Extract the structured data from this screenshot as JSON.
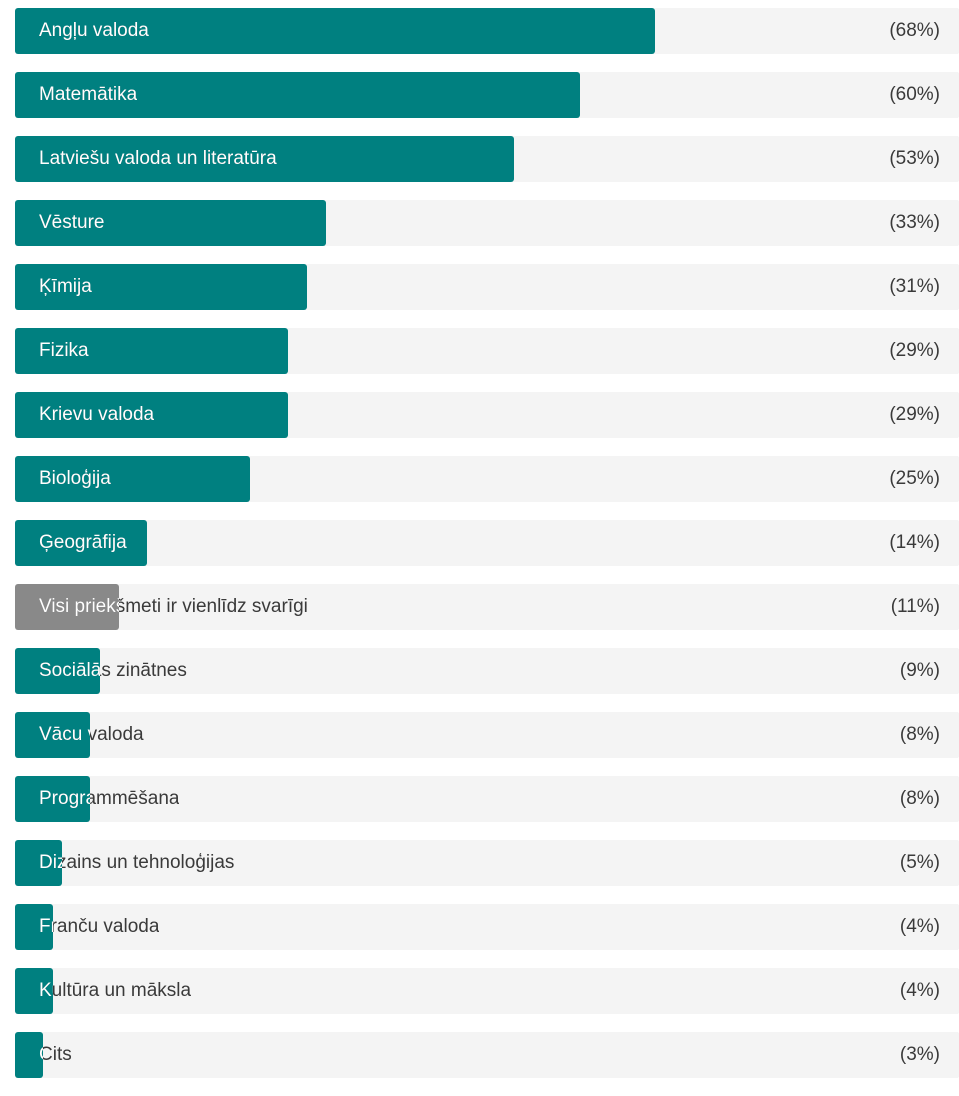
{
  "chart_data": {
    "type": "bar",
    "orientation": "horizontal",
    "xlim": [
      0,
      100
    ],
    "grid": false,
    "colors": {
      "primary": "#008080",
      "neutral": "#898989",
      "track": "#f4f4f4",
      "text_dark": "#3a3a3a",
      "text_light": "#ffffff"
    },
    "bars": [
      {
        "label": "Angļu valoda",
        "value": 68,
        "display": "(68%)",
        "color": "primary"
      },
      {
        "label": "Matemātika",
        "value": 60,
        "display": "(60%)",
        "color": "primary"
      },
      {
        "label": "Latviešu valoda un literatūra",
        "value": 53,
        "display": "(53%)",
        "color": "primary"
      },
      {
        "label": "Vēsture",
        "value": 33,
        "display": "(33%)",
        "color": "primary"
      },
      {
        "label": "Ķīmija",
        "value": 31,
        "display": "(31%)",
        "color": "primary"
      },
      {
        "label": "Fizika",
        "value": 29,
        "display": "(29%)",
        "color": "primary"
      },
      {
        "label": "Krievu valoda",
        "value": 29,
        "display": "(29%)",
        "color": "primary"
      },
      {
        "label": "Bioloģija",
        "value": 25,
        "display": "(25%)",
        "color": "primary"
      },
      {
        "label": "Ģeogrāfija",
        "value": 14,
        "display": "(14%)",
        "color": "primary"
      },
      {
        "label": "Visi priekšmeti ir vienlīdz svarīgi",
        "value": 11,
        "display": "(11%)",
        "color": "neutral"
      },
      {
        "label": "Sociālās zinātnes",
        "value": 9,
        "display": "(9%)",
        "color": "primary"
      },
      {
        "label": "Vācu valoda",
        "value": 8,
        "display": "(8%)",
        "color": "primary"
      },
      {
        "label": "Programmēšana",
        "value": 8,
        "display": "(8%)",
        "color": "primary"
      },
      {
        "label": "Dizains un tehnoloģijas",
        "value": 5,
        "display": "(5%)",
        "color": "primary"
      },
      {
        "label": "Franču valoda",
        "value": 4,
        "display": "(4%)",
        "color": "primary"
      },
      {
        "label": "Kultūra un māksla",
        "value": 4,
        "display": "(4%)",
        "color": "primary"
      },
      {
        "label": "Cits",
        "value": 3,
        "display": "(3%)",
        "color": "primary"
      }
    ]
  }
}
